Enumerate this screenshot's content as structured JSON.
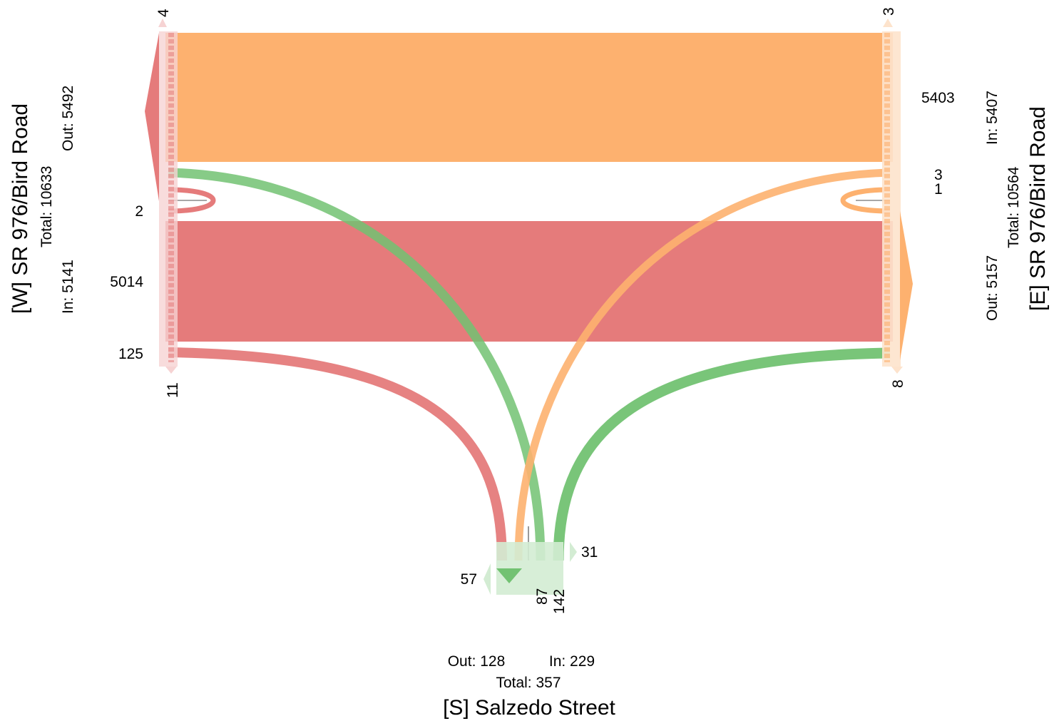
{
  "approaches": {
    "west": {
      "name": "[W] SR 976/Bird Road",
      "total": "Total: 10633",
      "out": "Out: 5492",
      "in": "In: 5141"
    },
    "east": {
      "name": "[E] SR 976/Bird Road",
      "total": "Total: 10564",
      "out": "Out: 5157",
      "in": "In: 5407"
    },
    "south": {
      "name": "[S] Salzedo Street",
      "total": "Total: 357",
      "out": "Out: 128",
      "in": "In: 229"
    }
  },
  "movements": {
    "west": {
      "top": "4",
      "uturn": "2",
      "through": "5014",
      "right": "125",
      "bottom": "11"
    },
    "east": {
      "top": "3",
      "through": "5403",
      "uturn_a": "3",
      "uturn_b": "1",
      "bottom": "8"
    },
    "south": {
      "right_side": "31",
      "left_side": "57",
      "a": "87",
      "b": "142"
    }
  },
  "colors": {
    "west_flow": "#e57b7b",
    "east_flow": "#fdb16f",
    "south_flow": "#72c272",
    "west_bar": "#f6d3d3",
    "east_bar": "#fde3cc",
    "south_bar": "#d3ecd3"
  }
}
